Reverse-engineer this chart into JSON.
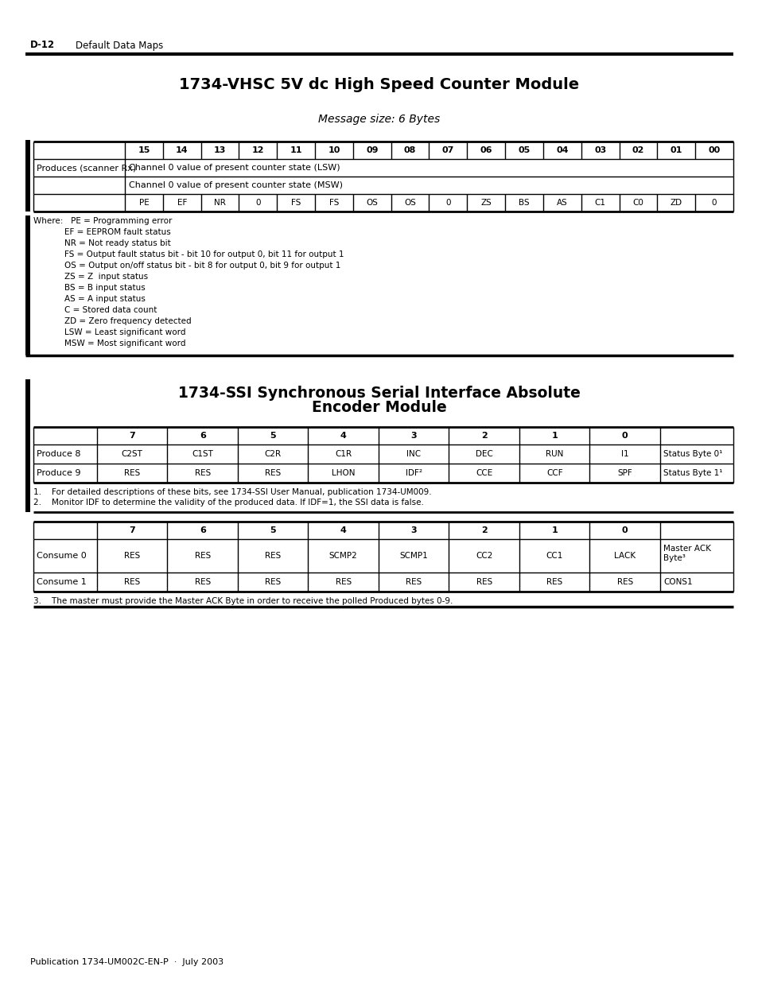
{
  "page_header_label": "D-12",
  "page_header_text": "Default Data Maps",
  "section1_title": "1734-VHSC 5V dc High Speed Counter Module",
  "section1_subtitle": "Message size: 6 Bytes",
  "section1_col_headers": [
    "15",
    "14",
    "13",
    "12",
    "11",
    "10",
    "09",
    "08",
    "07",
    "06",
    "05",
    "04",
    "03",
    "02",
    "01",
    "00"
  ],
  "section1_row0_label": "Produces (scanner Rx)",
  "section1_row0_span": "Channel 0 value of present counter state (LSW)",
  "section1_row1_span": "Channel 0 value of present counter state (MSW)",
  "section1_row2_cells": [
    "PE",
    "EF",
    "NR",
    "0",
    "FS",
    "FS",
    "OS",
    "OS",
    "0",
    "ZS",
    "BS",
    "AS",
    "C1",
    "C0",
    "ZD",
    "0"
  ],
  "section1_where_lines": [
    "Where:   PE = Programming error",
    "            EF = EEPROM fault status",
    "            NR = Not ready status bit",
    "            FS = Output fault status bit - bit 10 for output 0, bit 11 for output 1",
    "            OS = Output on/off status bit - bit 8 for output 0, bit 9 for output 1",
    "            ZS = Z  input status",
    "            BS = B input status",
    "            AS = A input status",
    "            C = Stored data count",
    "            ZD = Zero frequency detected",
    "            LSW = Least significant word",
    "            MSW = Most significant word"
  ],
  "section2_title_line1": "1734-SSI Synchronous Serial Interface Absolute",
  "section2_title_line2": "Encoder Module",
  "section2_col_headers": [
    "7",
    "6",
    "5",
    "4",
    "3",
    "2",
    "1",
    "0"
  ],
  "section2_produce8_cells": [
    "C2ST",
    "C1ST",
    "C2R",
    "C1R",
    "INC",
    "DEC",
    "RUN",
    "I1",
    "Status Byte 0¹"
  ],
  "section2_produce9_cells": [
    "RES",
    "RES",
    "RES",
    "LHON",
    "IDF²",
    "CCE",
    "CCF",
    "SPF",
    "Status Byte 1¹"
  ],
  "section2_row_labels": [
    "Produce 8",
    "Produce 9"
  ],
  "section2_footnotes": [
    "1.    For detailed descriptions of these bits, see 1734-SSI User Manual, publication 1734-UM009.",
    "2.    Monitor IDF to determine the validity of the produced data. If IDF=1, the SSI data is false."
  ],
  "section3_col_headers": [
    "7",
    "6",
    "5",
    "4",
    "3",
    "2",
    "1",
    "0"
  ],
  "section3_consume0_cells": [
    "RES",
    "RES",
    "RES",
    "SCMP2",
    "SCMP1",
    "CC2",
    "CC1",
    "LACK",
    "Master ACK\nByte³"
  ],
  "section3_consume1_cells": [
    "RES",
    "RES",
    "RES",
    "RES",
    "RES",
    "RES",
    "RES",
    "RES",
    "CONS1"
  ],
  "section3_row_labels": [
    "Consume 0",
    "Consume 1"
  ],
  "section3_footnote": "3.    The master must provide the Master ACK Byte in order to receive the polled Produced bytes 0-9.",
  "footer": "Publication 1734-UM002C-EN-P  ·  July 2003",
  "bg_color": "#ffffff"
}
